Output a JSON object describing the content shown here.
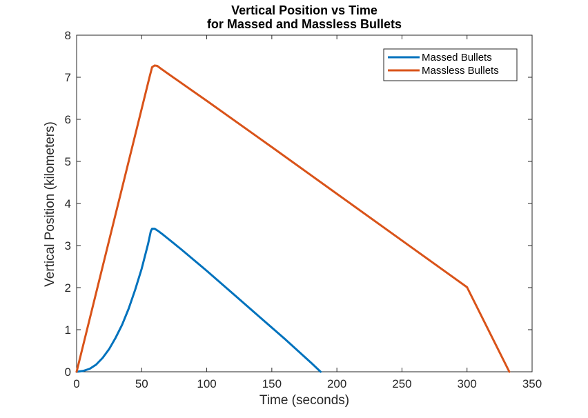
{
  "chart_data": {
    "type": "line",
    "title": [
      "Vertical Position vs Time",
      "for Massed and Massless Bullets"
    ],
    "xlabel": "Time (seconds)",
    "ylabel": "Vertical Position (kilometers)",
    "xlim": [
      0,
      350
    ],
    "ylim": [
      0,
      8
    ],
    "xticks": [
      0,
      50,
      100,
      150,
      200,
      250,
      300,
      350
    ],
    "yticks": [
      0,
      1,
      2,
      3,
      4,
      5,
      6,
      7,
      8
    ],
    "grid": false,
    "legend_position": "top-right",
    "series": [
      {
        "name": "Massed Bullets",
        "color": "#0072BD",
        "x": [
          0,
          5,
          10,
          15,
          20,
          25,
          30,
          35,
          40,
          45,
          50,
          55,
          57,
          58,
          60,
          63,
          66,
          70,
          80,
          100,
          120,
          140,
          160,
          180,
          187.5
        ],
        "y": [
          0,
          0.02,
          0.07,
          0.17,
          0.33,
          0.54,
          0.81,
          1.12,
          1.5,
          1.95,
          2.45,
          3.05,
          3.34,
          3.4,
          3.4,
          3.34,
          3.27,
          3.17,
          2.92,
          2.4,
          1.86,
          1.32,
          0.78,
          0.22,
          0
        ]
      },
      {
        "name": "Massless Bullets",
        "color": "#D95319",
        "x": [
          0,
          10,
          20,
          30,
          40,
          50,
          56,
          58,
          60,
          62,
          65,
          70,
          100,
          150,
          200,
          250,
          300,
          332.5
        ],
        "y": [
          0,
          1.25,
          2.5,
          3.75,
          5.0,
          6.25,
          7.0,
          7.24,
          7.28,
          7.27,
          7.2,
          7.09,
          6.44,
          5.34,
          4.23,
          3.12,
          2.01,
          0
        ]
      }
    ]
  }
}
